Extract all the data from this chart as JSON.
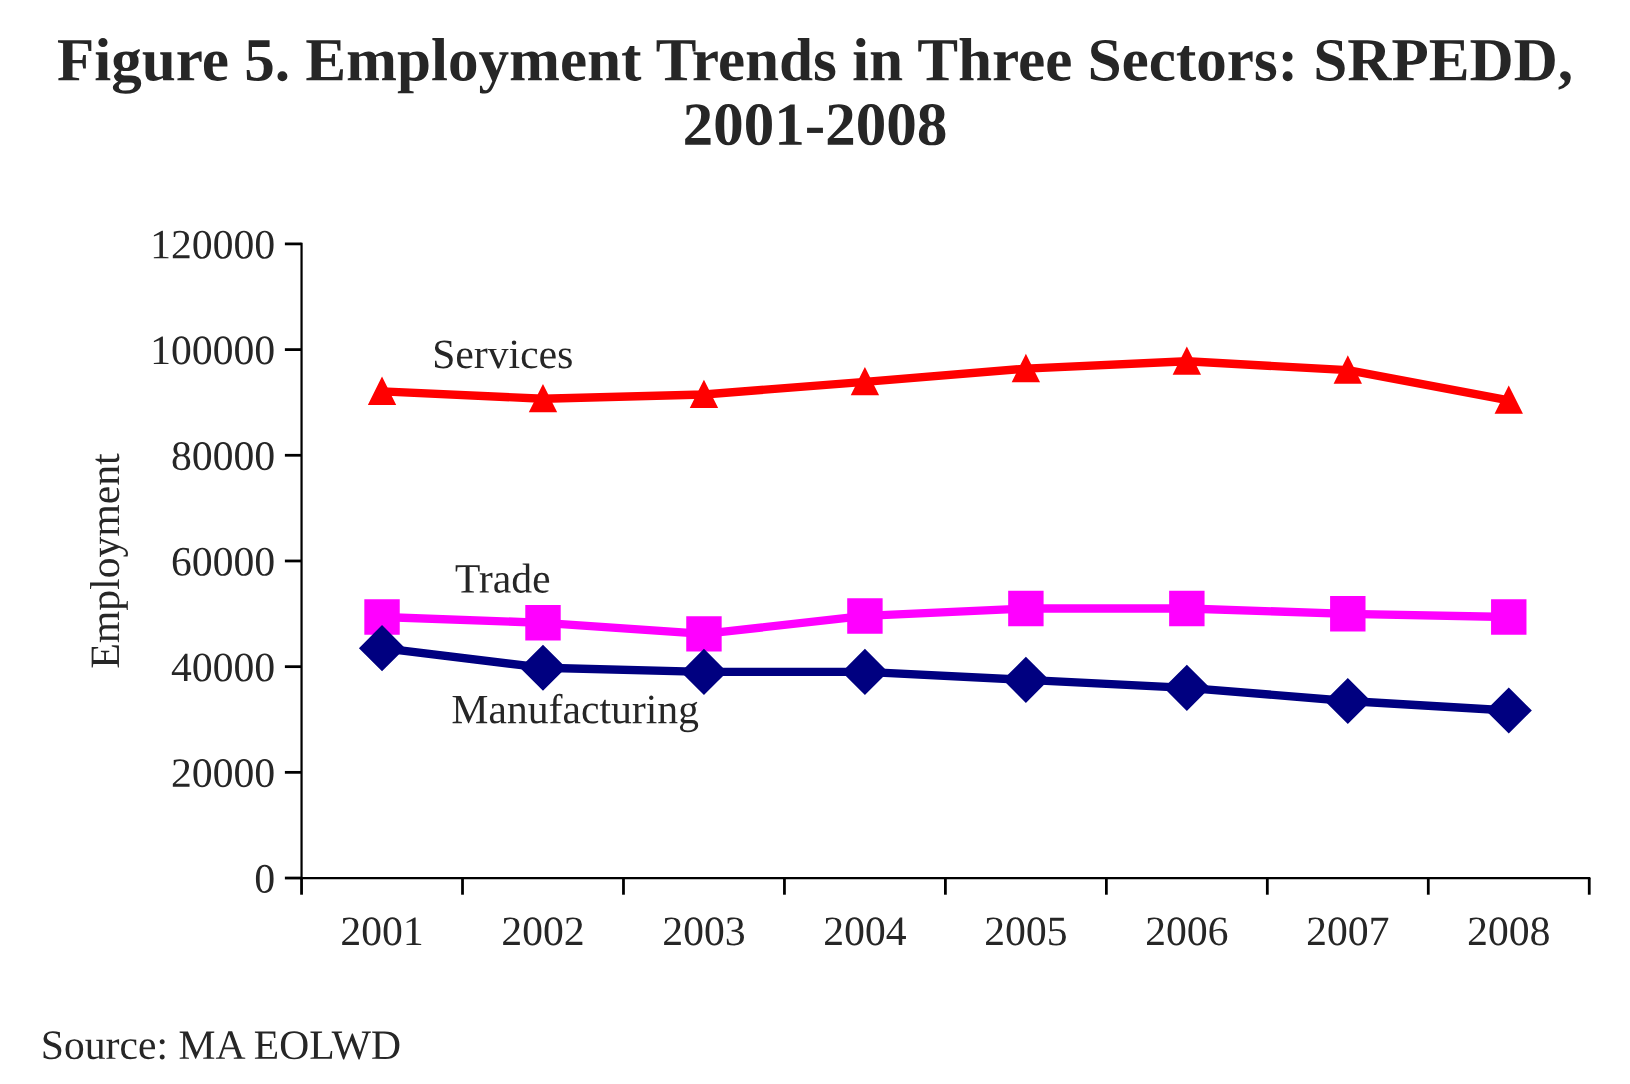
{
  "chart_data": {
    "type": "line",
    "title": "Figure 5. Employment Trends in Three Sectors: SRPEDD, 2001-2008",
    "categories": [
      "2001",
      "2002",
      "2003",
      "2004",
      "2005",
      "2006",
      "2007",
      "2008"
    ],
    "series": [
      {
        "name": "Services",
        "color": "#ff0000",
        "marker": "triangle",
        "values": [
          92100,
          90700,
          91500,
          93900,
          96400,
          97800,
          96100,
          90400
        ]
      },
      {
        "name": "Trade",
        "color": "#ff00ff",
        "marker": "square",
        "values": [
          49400,
          48300,
          46200,
          49600,
          51000,
          51000,
          50000,
          49400
        ]
      },
      {
        "name": "Manufacturing",
        "color": "#000080",
        "marker": "diamond",
        "values": [
          43500,
          39800,
          39000,
          39000,
          37500,
          36000,
          33500,
          31700
        ]
      }
    ],
    "ylabel": "Employment",
    "ylim": [
      0,
      120000
    ],
    "yticks": [
      0,
      20000,
      40000,
      60000,
      80000,
      100000,
      120000
    ],
    "annotations": [
      "Source: MA EOLWD"
    ],
    "grid": false,
    "legend": false
  }
}
